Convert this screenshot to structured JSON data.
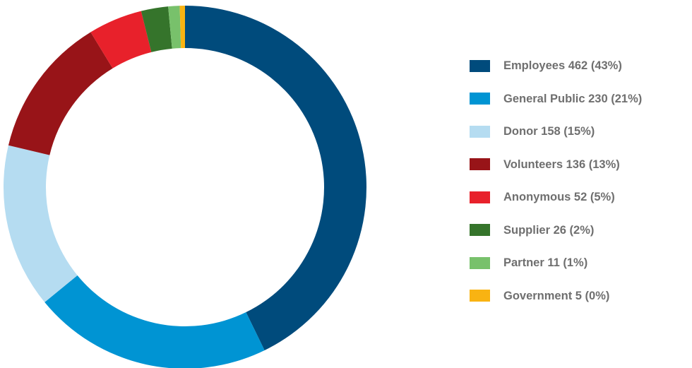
{
  "chart_data": {
    "type": "pie",
    "categories": [
      "Employees",
      "General Public",
      "Donor",
      "Volunteers",
      "Anonymous",
      "Supplier",
      "Partner",
      "Government"
    ],
    "values": [
      462,
      230,
      158,
      136,
      52,
      26,
      11,
      5
    ],
    "colors": [
      "#004b7c",
      "#0094d3",
      "#b5dcf1",
      "#981418",
      "#e8212b",
      "#35742b",
      "#78c16b",
      "#f9b312"
    ],
    "legend_labels": [
      "Employees 462 (43%)",
      "General Public 230 (21%)",
      "Donor 158 (15%)",
      "Volunteers 136 (13%)",
      "Anonymous 52 (5%)",
      "Supplier 26 (2%)",
      "Partner 11 (1%)",
      "Government 5 (0%)"
    ],
    "donut": true,
    "start_angle": "top",
    "direction": "clockwise",
    "legend_position": "right"
  }
}
